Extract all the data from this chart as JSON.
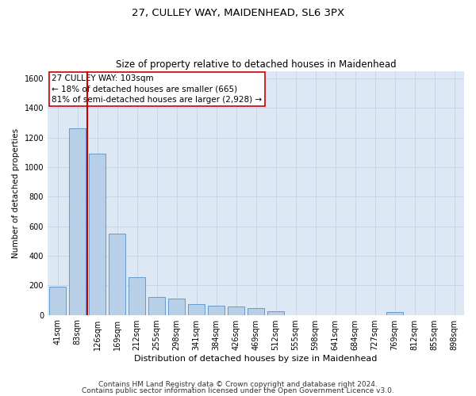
{
  "title1": "27, CULLEY WAY, MAIDENHEAD, SL6 3PX",
  "title2": "Size of property relative to detached houses in Maidenhead",
  "xlabel": "Distribution of detached houses by size in Maidenhead",
  "ylabel": "Number of detached properties",
  "annotation_title": "27 CULLEY WAY: 103sqm",
  "annotation_line1": "← 18% of detached houses are smaller (665)",
  "annotation_line2": "81% of semi-detached houses are larger (2,928) →",
  "bar_categories": [
    "41sqm",
    "83sqm",
    "126sqm",
    "169sqm",
    "212sqm",
    "255sqm",
    "298sqm",
    "341sqm",
    "384sqm",
    "426sqm",
    "469sqm",
    "512sqm",
    "555sqm",
    "598sqm",
    "641sqm",
    "684sqm",
    "727sqm",
    "769sqm",
    "812sqm",
    "855sqm",
    "898sqm"
  ],
  "bar_values": [
    190,
    1265,
    1090,
    550,
    255,
    120,
    110,
    75,
    60,
    55,
    45,
    25,
    0,
    0,
    0,
    0,
    0,
    20,
    0,
    0,
    0
  ],
  "bar_color": "#b8cfe8",
  "bar_edge_color": "#6699cc",
  "vline_color": "#cc0000",
  "vline_x_index": 1.5,
  "annotation_box_color": "#ffffff",
  "annotation_box_edge_color": "#cc0000",
  "ylim": [
    0,
    1650
  ],
  "yticks": [
    0,
    200,
    400,
    600,
    800,
    1000,
    1200,
    1400,
    1600
  ],
  "grid_color": "#c8d4e8",
  "background_color": "#dde8f5",
  "footer1": "Contains HM Land Registry data © Crown copyright and database right 2024.",
  "footer2": "Contains public sector information licensed under the Open Government Licence v3.0.",
  "title1_fontsize": 9.5,
  "title2_fontsize": 8.5,
  "xlabel_fontsize": 8,
  "ylabel_fontsize": 7.5,
  "tick_fontsize": 7,
  "annotation_fontsize": 7.5,
  "footer_fontsize": 6.5
}
